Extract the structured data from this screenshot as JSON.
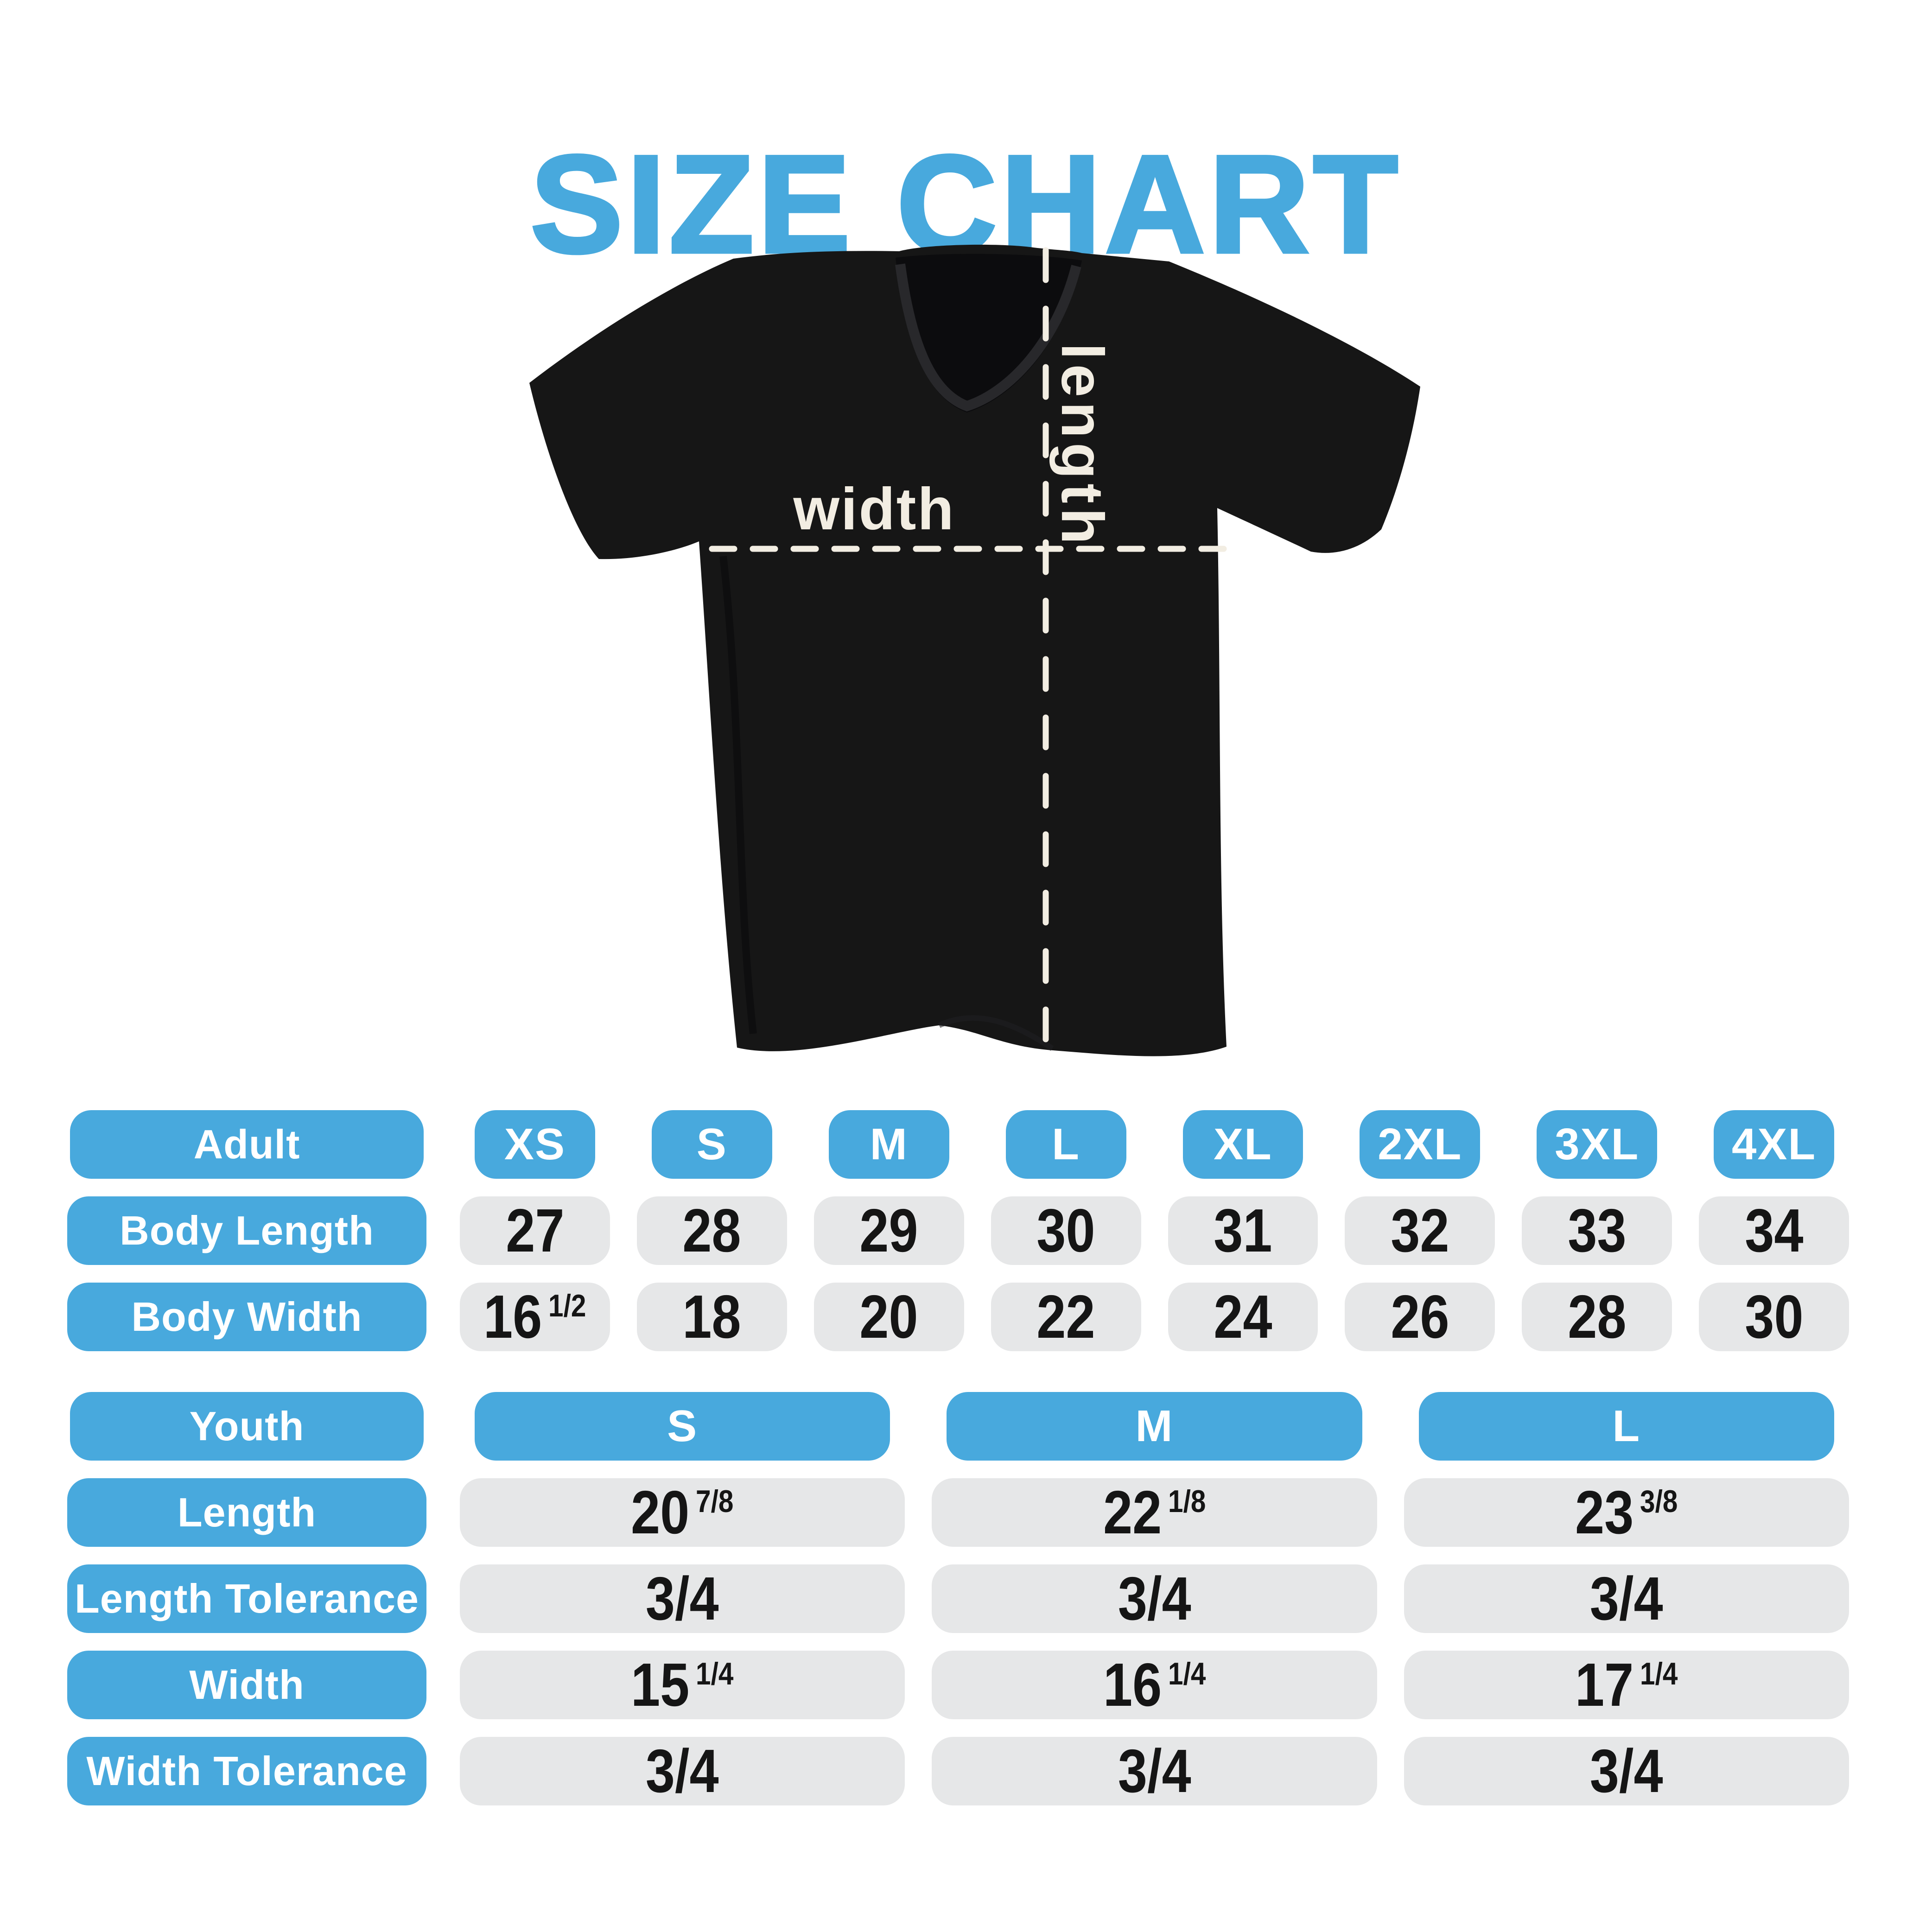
{
  "title": "SIZE CHART",
  "colors": {
    "accent": "#48A9DD",
    "pill_gray": "#E6E7E8",
    "cream": "#F2EDE2",
    "shirt": "#161616",
    "text_dark": "#151515"
  },
  "shirt": {
    "width_label": "width",
    "length_label": "length"
  },
  "adult_table": {
    "header_label": "Adult",
    "sizes": [
      "XS",
      "S",
      "M",
      "L",
      "XL",
      "2XL",
      "3XL",
      "4XL"
    ],
    "rows": [
      {
        "label": "Body Length",
        "values": [
          {
            "main": "27"
          },
          {
            "main": "28"
          },
          {
            "main": "29"
          },
          {
            "main": "30"
          },
          {
            "main": "31"
          },
          {
            "main": "32"
          },
          {
            "main": "33"
          },
          {
            "main": "34"
          }
        ]
      },
      {
        "label": "Body Width",
        "values": [
          {
            "main": "16",
            "frac": "1/2"
          },
          {
            "main": "18"
          },
          {
            "main": "20"
          },
          {
            "main": "22"
          },
          {
            "main": "24"
          },
          {
            "main": "26"
          },
          {
            "main": "28"
          },
          {
            "main": "30"
          }
        ]
      }
    ]
  },
  "youth_table": {
    "header_label": "Youth",
    "sizes": [
      "S",
      "M",
      "L"
    ],
    "rows": [
      {
        "label": "Length",
        "values": [
          {
            "main": "20",
            "frac": "7/8"
          },
          {
            "main": "22",
            "frac": "1/8"
          },
          {
            "main": "23",
            "frac": "3/8"
          }
        ]
      },
      {
        "label": "Length Tolerance",
        "values": [
          {
            "main": "3/4"
          },
          {
            "main": "3/4"
          },
          {
            "main": "3/4"
          }
        ]
      },
      {
        "label": "Width",
        "values": [
          {
            "main": "15",
            "frac": "1/4"
          },
          {
            "main": "16",
            "frac": "1/4"
          },
          {
            "main": "17",
            "frac": "1/4"
          }
        ]
      },
      {
        "label": "Width Tolerance",
        "values": [
          {
            "main": "3/4"
          },
          {
            "main": "3/4"
          },
          {
            "main": "3/4"
          }
        ]
      }
    ]
  }
}
